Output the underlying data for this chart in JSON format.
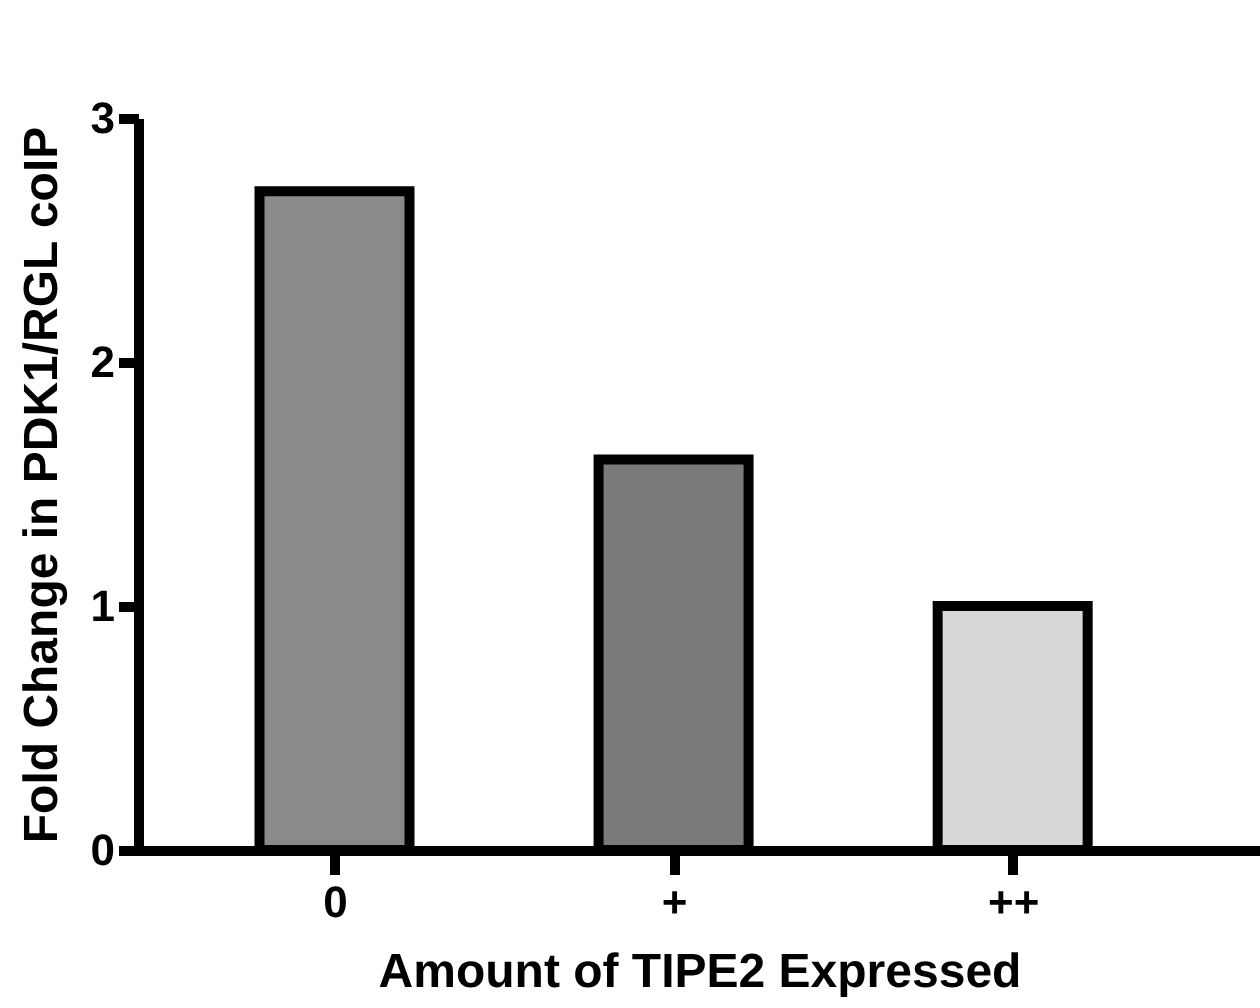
{
  "chart_data": {
    "type": "bar",
    "xlabel": "Amount of TIPE2 Expressed",
    "ylabel": "Fold Change in PDK1/RGL coIP",
    "categories": [
      "0",
      "+",
      "++"
    ],
    "values": [
      2.7,
      1.6,
      1.0
    ],
    "colors": [
      "#8a8a8a",
      "#7a7a7a",
      "#d8d8d8"
    ],
    "ylim": [
      0,
      3
    ],
    "yticks": [
      0,
      1,
      2,
      3
    ],
    "grid": false,
    "legend": false
  }
}
